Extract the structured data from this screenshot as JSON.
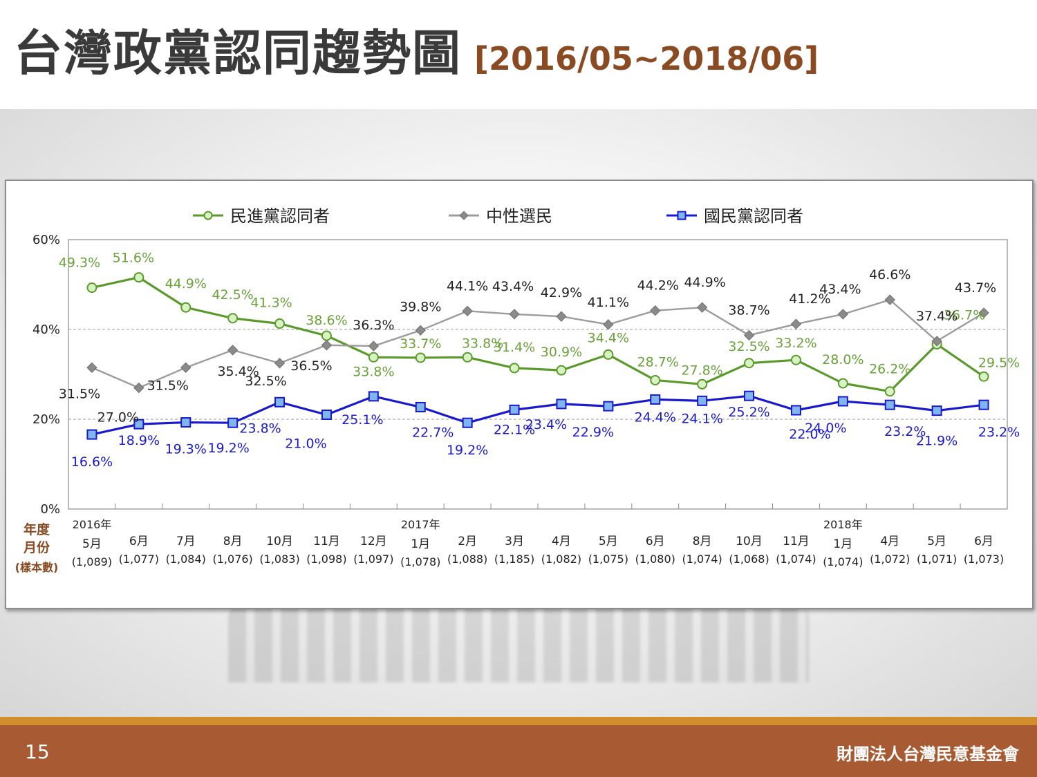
{
  "slide": {
    "title": "台灣政黨認同趨勢圖",
    "title_range": "[2016/05~2018/06]",
    "page_number": "15",
    "organization": "財團法人台灣民意基金會"
  },
  "colors": {
    "title": "#3a3a3a",
    "title_range": "#8a4a22",
    "footer": "#a85a32",
    "footer_stripe": "#d18e2b",
    "dpp": "#5a9a2a",
    "neutral": "#9c9c9c",
    "kmt": "#1a1acc",
    "axis_caption": "#8a4a22"
  },
  "chart_data": {
    "type": "line",
    "y_tick_labels": [
      "0%",
      "20%",
      "40%",
      "60%"
    ],
    "ylim": [
      0,
      60
    ],
    "y_gridlines": [
      20,
      40
    ],
    "legend_position": "top",
    "axis_caption_lines": [
      "年度",
      "月份",
      "(樣本數)"
    ],
    "categories": [
      {
        "year": "2016年",
        "month": "5月",
        "sample": "(1,089)"
      },
      {
        "year": "",
        "month": "6月",
        "sample": "(1,077)"
      },
      {
        "year": "",
        "month": "7月",
        "sample": "(1,084)"
      },
      {
        "year": "",
        "month": "8月",
        "sample": "(1,076)"
      },
      {
        "year": "",
        "month": "10月",
        "sample": "(1,083)"
      },
      {
        "year": "",
        "month": "11月",
        "sample": "(1,098)"
      },
      {
        "year": "",
        "month": "12月",
        "sample": "(1,097)"
      },
      {
        "year": "2017年",
        "month": "1月",
        "sample": "(1,078)"
      },
      {
        "year": "",
        "month": "2月",
        "sample": "(1,088)"
      },
      {
        "year": "",
        "month": "3月",
        "sample": "(1,185)"
      },
      {
        "year": "",
        "month": "4月",
        "sample": "(1,082)"
      },
      {
        "year": "",
        "month": "5月",
        "sample": "(1,075)"
      },
      {
        "year": "",
        "month": "6月",
        "sample": "(1,080)"
      },
      {
        "year": "",
        "month": "8月",
        "sample": "(1,074)"
      },
      {
        "year": "",
        "month": "10月",
        "sample": "(1,068)"
      },
      {
        "year": "",
        "month": "11月",
        "sample": "(1,074)"
      },
      {
        "year": "2018年",
        "month": "1月",
        "sample": "(1,074)"
      },
      {
        "year": "",
        "month": "4月",
        "sample": "(1,072)"
      },
      {
        "year": "",
        "month": "5月",
        "sample": "(1,071)"
      },
      {
        "year": "",
        "month": "6月",
        "sample": "(1,073)"
      }
    ],
    "series": [
      {
        "key": "dpp",
        "name": "民進黨認同者",
        "color": "#5a9a2a",
        "marker": "circle",
        "values": [
          49.3,
          51.6,
          44.9,
          42.5,
          41.3,
          38.6,
          33.8,
          33.7,
          33.8,
          31.4,
          30.9,
          34.4,
          28.7,
          27.8,
          32.5,
          33.2,
          28.0,
          26.2,
          36.7,
          29.5
        ],
        "labels": [
          "49.3%",
          "51.6%",
          "44.9%",
          "42.5%",
          "41.3%",
          "38.6%",
          "33.8%",
          "33.7%",
          "33.8%",
          "31.4%",
          "30.9%",
          "34.4%",
          "28.7%",
          "27.8%",
          "32.5%",
          "33.2%",
          "28.0%",
          "26.2%",
          "36.7%",
          "29.5%"
        ]
      },
      {
        "key": "neutral",
        "name": "中性選民",
        "color": "#9c9c9c",
        "marker": "diamond",
        "values": [
          31.5,
          27.0,
          31.5,
          35.4,
          32.5,
          36.5,
          36.3,
          39.8,
          44.1,
          43.4,
          42.9,
          41.1,
          44.2,
          44.9,
          38.7,
          41.2,
          43.4,
          46.6,
          37.4,
          43.7
        ],
        "labels": [
          "31.5%",
          "27.0%",
          "31.5%",
          "35.4%",
          "32.5%",
          "36.5%",
          "36.3%",
          "39.8%",
          "44.1%",
          "43.4%",
          "42.9%",
          "41.1%",
          "44.2%",
          "44.9%",
          "38.7%",
          "41.2%",
          "43.4%",
          "46.6%",
          "37.4%",
          "43.7%"
        ]
      },
      {
        "key": "kmt",
        "name": "國民黨認同者",
        "color": "#1a1acc",
        "marker": "square",
        "values": [
          16.6,
          18.9,
          19.3,
          19.2,
          23.8,
          21.0,
          25.1,
          22.7,
          19.2,
          22.1,
          23.4,
          22.9,
          24.4,
          24.1,
          25.2,
          22.0,
          24.0,
          23.2,
          21.9,
          23.2
        ],
        "labels": [
          "16.6%",
          "18.9%",
          "19.3%",
          "19.2%",
          "23.8%",
          "21.0%",
          "25.1%",
          "22.7%",
          "19.2%",
          "22.1%",
          "23.4%",
          "22.9%",
          "24.4%",
          "24.1%",
          "25.2%",
          "22.0%",
          "24.0%",
          "23.2%",
          "21.9%",
          "23.2%"
        ]
      }
    ]
  }
}
